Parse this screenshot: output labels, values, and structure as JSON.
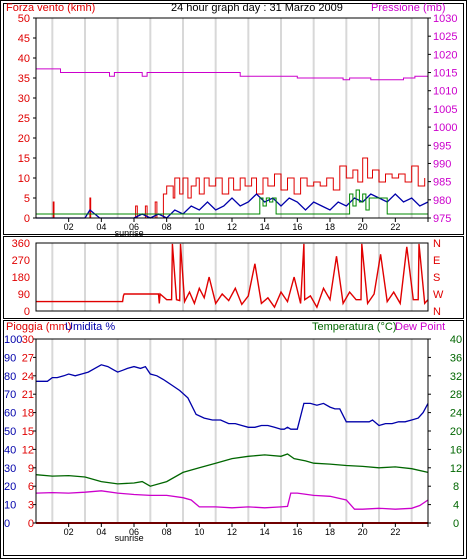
{
  "chart_data": [
    {
      "type": "line",
      "title": "24 hour graph day : 31 Marzo 2009",
      "ylabel": "Forza vento (kmh)",
      "y2label": "Pressione (mb)",
      "ylim": [
        0,
        50
      ],
      "y2lim": [
        975,
        1030
      ],
      "yticks": [
        0,
        5,
        10,
        15,
        20,
        25,
        30,
        35,
        40,
        45,
        50
      ],
      "y2ticks": [
        975,
        980,
        985,
        990,
        995,
        1000,
        1005,
        1010,
        1015,
        1020,
        1025,
        1030
      ],
      "xlim": [
        0,
        24
      ],
      "xticks": [
        "02",
        "04",
        "06",
        "08",
        "10",
        "12",
        "14",
        "16",
        "18",
        "20",
        "22"
      ],
      "sunrise_label": "sunrise",
      "sunrise_hour": 5.7,
      "series": [
        {
          "role": "pressure",
          "color": "#cc00cc",
          "axis": "right",
          "x": [
            0,
            1.5,
            1.5,
            4.5,
            4.5,
            4.8,
            4.8,
            6.5,
            6.5,
            6.8,
            6.8,
            12.5,
            12.5,
            16,
            16,
            18.8,
            18.8,
            19.2,
            19.2,
            20.5,
            20.5,
            22.5,
            22.5,
            23.2,
            23.2,
            24
          ],
          "y": [
            1016,
            1016,
            1015,
            1015,
            1014,
            1014,
            1015,
            1015,
            1014,
            1014,
            1015,
            1015,
            1014,
            1014,
            1013.5,
            1013.5,
            1013,
            1013,
            1013.5,
            1013.5,
            1013,
            1013,
            1013.5,
            1013.5,
            1014,
            1014
          ]
        },
        {
          "role": "wind-gust",
          "color": "#e00000",
          "axis": "left",
          "x": [
            0,
            1.0,
            1.05,
            1.1,
            3.0,
            3.3,
            3.35,
            3.5,
            6.0,
            6.1,
            6.2,
            6.7,
            6.8,
            7.3,
            7.4,
            7.8,
            8.0,
            8.4,
            8.5,
            8.8,
            9.0,
            9.3,
            9.5,
            9.8,
            10.0,
            10.3,
            10.6,
            11.0,
            11.4,
            11.8,
            12.1,
            12.5,
            12.8,
            13.2,
            13.5,
            13.9,
            14.2,
            14.6,
            15.0,
            15.4,
            15.8,
            16.2,
            16.6,
            17.0,
            17.4,
            17.8,
            18.2,
            18.6,
            19.0,
            19.4,
            19.7,
            20.0,
            20.3,
            20.6,
            21.0,
            21.4,
            21.8,
            22.2,
            22.6,
            23.0,
            23.4,
            23.8
          ],
          "y": [
            0,
            0,
            4,
            0,
            0,
            5,
            0,
            0,
            0,
            3,
            0,
            3,
            0,
            4,
            0,
            6,
            8,
            5,
            10,
            6,
            10,
            5,
            8,
            10,
            6,
            10,
            8,
            10,
            6,
            10,
            7,
            10,
            8,
            10,
            6,
            10,
            8,
            11,
            7,
            10,
            6,
            10,
            8,
            9,
            8,
            10,
            7,
            13,
            10,
            12,
            9,
            15,
            10,
            12,
            9,
            11,
            10,
            11,
            9,
            13,
            8,
            10
          ]
        },
        {
          "role": "wind-avg",
          "color": "#0000aa",
          "axis": "left",
          "x": [
            0,
            3.0,
            3.3,
            3.6,
            3.9,
            6.0,
            6.5,
            7.0,
            7.5,
            8.0,
            8.5,
            9.0,
            9.5,
            10.0,
            10.5,
            11.0,
            11.5,
            12.0,
            12.5,
            13.0,
            13.5,
            14.0,
            14.5,
            15.0,
            15.5,
            16.0,
            16.5,
            17.0,
            17.5,
            18.0,
            18.5,
            19.0,
            19.5,
            20.0,
            20.5,
            21.0,
            21.5,
            22.0,
            22.5,
            23.0,
            23.5,
            24
          ],
          "y": [
            0,
            0,
            2,
            1,
            0,
            0,
            1,
            0,
            1,
            0,
            2,
            1,
            3,
            2,
            4,
            2,
            3,
            5,
            3,
            4,
            6,
            4,
            5,
            3,
            5,
            4,
            2,
            4,
            3,
            2,
            4,
            3,
            5,
            4,
            6,
            5,
            4,
            6,
            4,
            5,
            3,
            4
          ]
        },
        {
          "role": "wind-green",
          "color": "#008800",
          "axis": "left",
          "x": [
            0,
            13.6,
            13.7,
            13.9,
            14.1,
            14.3,
            14.5,
            14.7,
            19.0,
            19.2,
            19.4,
            19.6,
            19.8,
            20.0,
            20.2,
            20.4,
            21.5,
            24
          ],
          "y": [
            1,
            1,
            5,
            3,
            5,
            4,
            5,
            1,
            1,
            6,
            3,
            7,
            4,
            6,
            2,
            5,
            1,
            1
          ]
        }
      ]
    },
    {
      "type": "line",
      "ylim": [
        0,
        360
      ],
      "yticks": [
        0,
        90,
        180,
        270,
        360
      ],
      "direction_labels": [
        "N",
        "W",
        "S",
        "E",
        "N"
      ],
      "xlim": [
        0,
        24
      ],
      "series": [
        {
          "role": "wind-direction",
          "color": "#e00000",
          "x": [
            0,
            5.3,
            5.35,
            5.4,
            7.5,
            7.55,
            7.6,
            8.0,
            8.3,
            8.35,
            8.6,
            8.8,
            8.85,
            9.1,
            9.4,
            9.7,
            10.0,
            10.3,
            10.6,
            11.0,
            11.4,
            11.8,
            12.2,
            12.6,
            13.0,
            13.4,
            13.8,
            14.2,
            14.6,
            15.0,
            15.4,
            15.8,
            16.2,
            16.4,
            16.45,
            16.8,
            17.2,
            17.6,
            18.0,
            18.4,
            18.8,
            19.2,
            19.6,
            19.9,
            19.95,
            20.3,
            20.7,
            21.1,
            21.5,
            21.9,
            22.3,
            22.7,
            23.1,
            23.4,
            23.45,
            23.8,
            24
          ],
          "y": [
            50,
            50,
            80,
            90,
            90,
            40,
            90,
            60,
            60,
            355,
            60,
            55,
            355,
            50,
            100,
            40,
            120,
            70,
            180,
            40,
            90,
            55,
            120,
            35,
            80,
            250,
            40,
            70,
            20,
            100,
            50,
            180,
            40,
            355,
            60,
            80,
            20,
            120,
            60,
            290,
            40,
            100,
            60,
            60,
            355,
            40,
            90,
            300,
            50,
            100,
            40,
            340,
            60,
            60,
            355,
            40,
            60
          ]
        }
      ]
    },
    {
      "type": "line",
      "ylabel": "Pioggia (mm)",
      "y1label": "Umidita %",
      "y2label": "Temperatura (°C)",
      "y3label": "Dew Point",
      "ylim": [
        0,
        30
      ],
      "humidity_lim": [
        0,
        100
      ],
      "temp_lim": [
        0,
        40
      ],
      "rain_ticks": [
        0,
        3,
        6,
        9,
        12,
        15,
        18,
        21,
        24,
        27,
        30
      ],
      "hum_ticks": [
        0,
        10,
        20,
        30,
        40,
        50,
        60,
        70,
        80,
        90,
        100
      ],
      "temp_ticks": [
        0,
        4,
        8,
        12,
        16,
        20,
        24,
        28,
        32,
        36,
        40
      ],
      "xlim": [
        0,
        24
      ],
      "xticks": [
        "02",
        "04",
        "06",
        "08",
        "10",
        "12",
        "14",
        "16",
        "18",
        "20",
        "22"
      ],
      "sunrise_label": "sunrise",
      "sunrise_hour": 5.7,
      "series": [
        {
          "role": "rain",
          "color": "#e00000",
          "axis": "left",
          "x": [
            0,
            24
          ],
          "y": [
            0,
            0
          ]
        },
        {
          "role": "humidity",
          "color": "#0000aa",
          "axis": "hum",
          "x": [
            0,
            0.7,
            1.0,
            1.3,
            1.7,
            2.0,
            2.4,
            2.8,
            3.2,
            3.6,
            4.0,
            4.4,
            4.8,
            5.0,
            5.3,
            5.6,
            6.0,
            6.4,
            6.7,
            7.0,
            7.4,
            7.8,
            8.3,
            8.8,
            9.3,
            9.8,
            10.3,
            10.8,
            11.3,
            11.8,
            12.2,
            12.6,
            13.0,
            13.4,
            13.8,
            14.2,
            14.6,
            15.0,
            15.2,
            15.4,
            15.6,
            16.0,
            16.4,
            16.8,
            17.2,
            17.6,
            18.0,
            18.3,
            18.6,
            19.0,
            19.5,
            20.0,
            20.4,
            20.6,
            21.0,
            21.4,
            21.8,
            22.2,
            22.6,
            23.0,
            23.4,
            23.7,
            24
          ],
          "y": [
            77,
            77,
            79,
            79,
            80,
            81,
            80,
            81,
            82,
            84,
            86,
            85,
            83,
            82,
            83,
            84,
            85,
            84,
            85,
            81,
            80,
            78,
            75,
            72,
            68,
            59,
            57,
            56,
            56,
            54,
            54,
            53,
            52,
            52,
            53,
            53,
            52,
            51,
            51,
            52,
            51,
            51,
            65,
            65,
            64,
            65,
            63,
            62,
            62,
            55,
            55,
            55,
            55,
            56,
            53,
            54,
            54,
            55,
            55,
            56,
            57,
            60,
            65
          ]
        },
        {
          "role": "temperature",
          "color": "#006600",
          "axis": "temp",
          "x": [
            0,
            1,
            2,
            3,
            4,
            5,
            6,
            6.5,
            7,
            8,
            9,
            10,
            11,
            12,
            13,
            14,
            15,
            15.4,
            15.8,
            16.5,
            17,
            18,
            19,
            20,
            21,
            22,
            23,
            24
          ],
          "y": [
            10.5,
            10.2,
            10.3,
            10.0,
            9.0,
            8.5,
            8.7,
            9.0,
            8.0,
            9.0,
            11.0,
            12.0,
            13.0,
            14.0,
            14.5,
            14.8,
            14.5,
            15.0,
            14.0,
            13.5,
            13.0,
            12.8,
            12.5,
            12.3,
            12.0,
            12.2,
            11.8,
            11.0
          ]
        },
        {
          "role": "dew-point",
          "color": "#cc00cc",
          "axis": "temp",
          "x": [
            0,
            1,
            2,
            3,
            4,
            5,
            6,
            7,
            8,
            9,
            9.5,
            10,
            11,
            12,
            13,
            14,
            15,
            15.4,
            15.6,
            16,
            17,
            18,
            19,
            19.5,
            20,
            21,
            22,
            23,
            23.5,
            24
          ],
          "y": [
            6.5,
            6.6,
            6.5,
            6.7,
            7.0,
            6.5,
            6.2,
            6.0,
            6.0,
            5.5,
            5.0,
            3.5,
            3.5,
            3.3,
            3.5,
            3.3,
            3.5,
            3.6,
            6.5,
            6.5,
            6.0,
            5.8,
            5.0,
            3.0,
            3.0,
            3.2,
            3.0,
            3.2,
            3.8,
            5.0
          ]
        }
      ]
    }
  ]
}
